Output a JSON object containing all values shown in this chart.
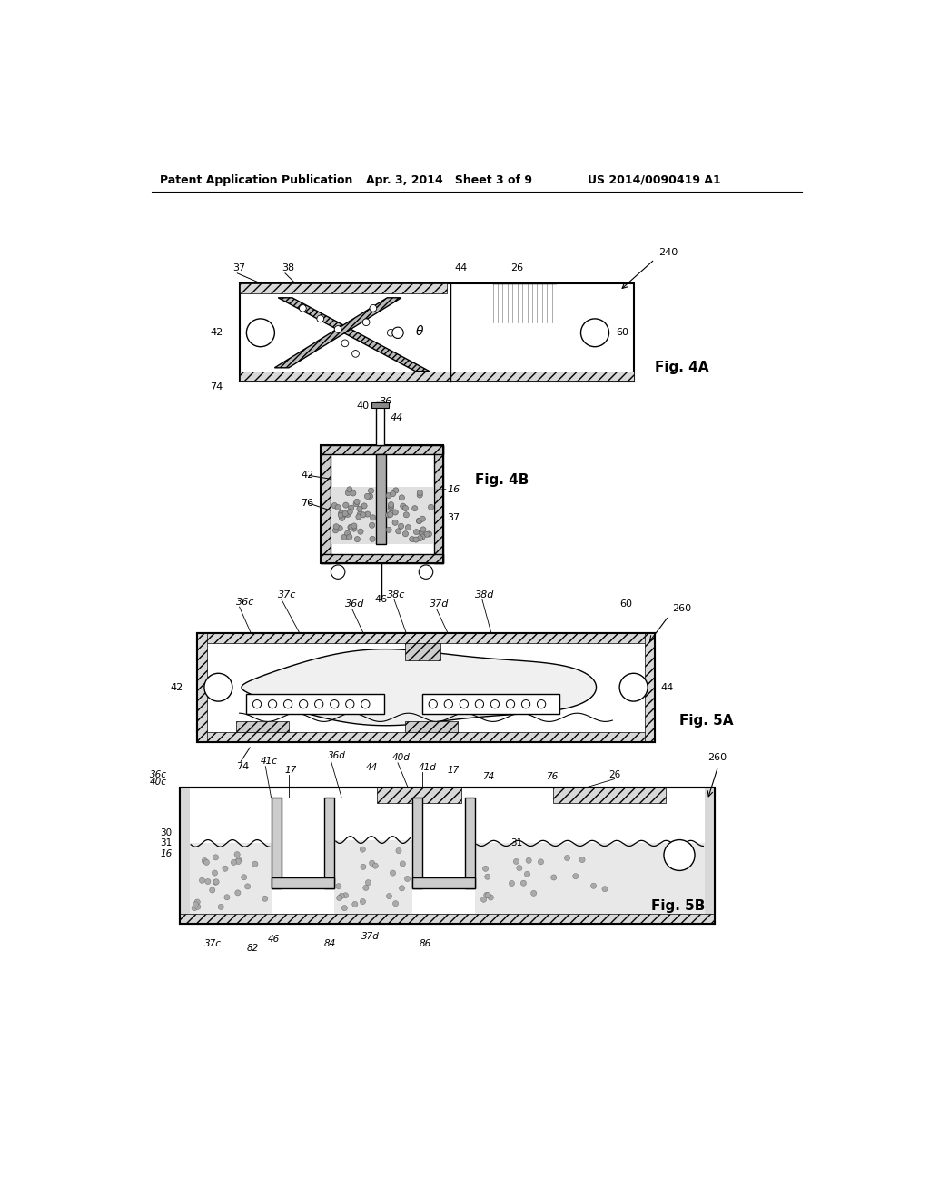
{
  "bg_color": "#ffffff",
  "header_left": "Patent Application Publication",
  "header_mid": "Apr. 3, 2014   Sheet 3 of 9",
  "header_right": "US 2014/0090419 A1",
  "fig4A_label": "Fig. 4A",
  "fig4B_label": "Fig. 4B",
  "fig5A_label": "Fig. 5A",
  "fig5B_label": "Fig. 5B"
}
